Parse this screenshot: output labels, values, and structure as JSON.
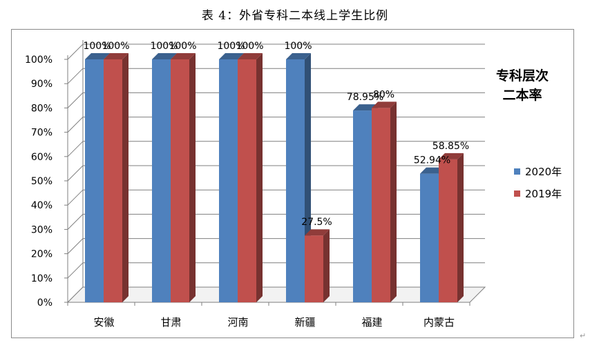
{
  "page_title": "表 4：外省专科二本线上学生比例",
  "return_mark": "↵",
  "chart_data": {
    "type": "bar",
    "title": "专科层次\n二本率",
    "categories": [
      "安徽",
      "甘肃",
      "河南",
      "新疆",
      "福建",
      "内蒙古"
    ],
    "series": [
      {
        "name": "2020年",
        "values": [
          100,
          100,
          100,
          100,
          78.95,
          52.94
        ],
        "labels": [
          "100%",
          "100%",
          "100%",
          "100%",
          "78.95%",
          "52.94%"
        ],
        "color": "#4F81BD"
      },
      {
        "name": "2019年",
        "values": [
          100,
          100,
          100,
          27.5,
          80,
          58.85
        ],
        "labels": [
          "100%",
          "100%",
          "100%",
          "27.5%",
          "80%",
          "58.85%"
        ],
        "color": "#C0504D"
      }
    ],
    "ylim": [
      0,
      100
    ],
    "yticks": [
      "0%",
      "10%",
      "20%",
      "30%",
      "40%",
      "50%",
      "60%",
      "70%",
      "80%",
      "90%",
      "100%"
    ],
    "grid": true,
    "legend_position": "right"
  }
}
